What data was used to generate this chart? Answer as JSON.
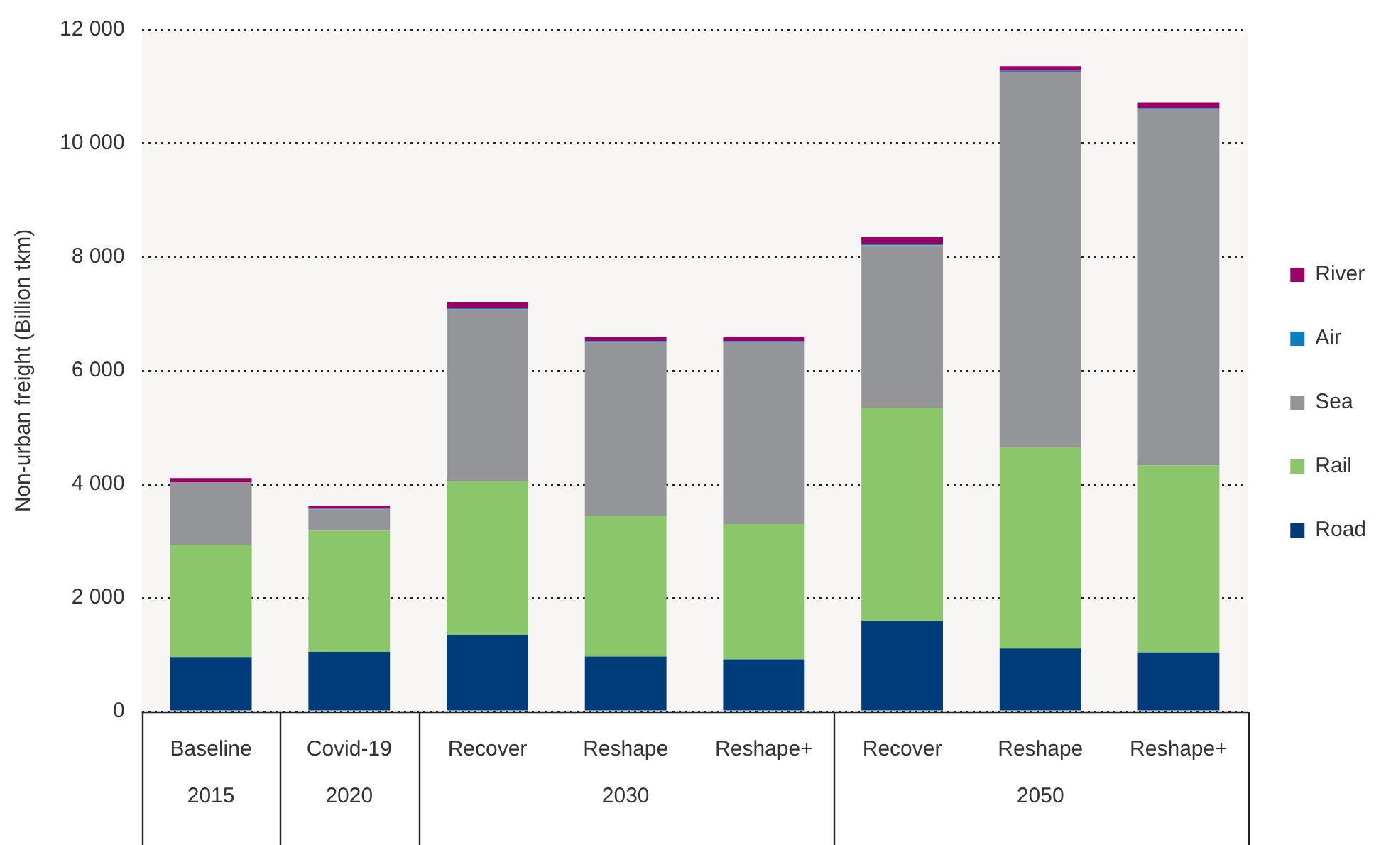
{
  "chart_data": {
    "type": "bar",
    "stacked": true,
    "ylabel": "Non-urban freight (Billion tkm)",
    "categories": [
      "Baseline",
      "Covid-19",
      "Recover",
      "Reshape",
      "Reshape+",
      "Recover",
      "Reshape",
      "Reshape+"
    ],
    "series": [
      {
        "name": "Road",
        "color": "#003b7a",
        "values": [
          960,
          1050,
          1350,
          970,
          920,
          1590,
          1110,
          1040
        ]
      },
      {
        "name": "Rail",
        "color": "#8cc66a",
        "values": [
          1970,
          2130,
          2700,
          2470,
          2380,
          3760,
          3540,
          3290
        ]
      },
      {
        "name": "Sea",
        "color": "#939598",
        "values": [
          1100,
          380,
          3030,
          3060,
          3200,
          2860,
          6610,
          6270
        ]
      },
      {
        "name": "Air",
        "color": "#0a7ec2",
        "values": [
          null,
          10,
          20,
          20,
          20,
          20,
          20,
          20
        ]
      },
      {
        "name": "River",
        "color": "#9c0062",
        "values": [
          80,
          50,
          100,
          70,
          80,
          120,
          80,
          100
        ]
      }
    ],
    "ylim": [
      0,
      12000
    ],
    "yticks": [
      0,
      {
        "value": 2000,
        "label": "2 000"
      },
      {
        "value": 4000,
        "label": "4 000"
      },
      {
        "value": 6000,
        "label": "6 000"
      },
      {
        "value": 8000,
        "label": "8 000"
      },
      {
        "value": 10000,
        "label": "10 000"
      },
      {
        "value": 12000,
        "label": "12 000"
      }
    ],
    "grid": "y",
    "legend": "right",
    "annotations": [
      "2015",
      "2020",
      "2030",
      "2050"
    ]
  }
}
